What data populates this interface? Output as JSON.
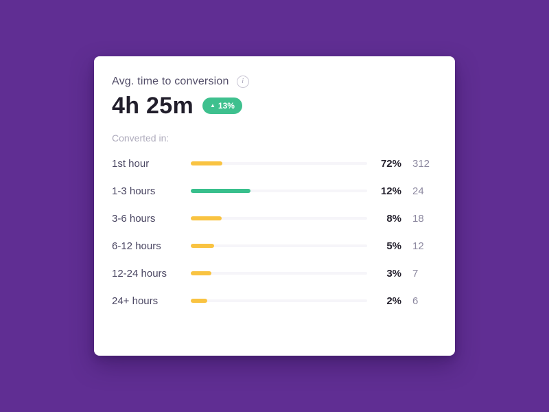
{
  "app": {
    "background_color": "#602e93"
  },
  "card": {
    "title": "Avg. time to conversion",
    "info_icon_glyph": "i",
    "metric": {
      "value": "4h 25m",
      "badge": {
        "direction": "up",
        "arrow": "▲",
        "label": "13%",
        "color": "#3ec08e"
      }
    },
    "section_label": "Converted in:",
    "rows": [
      {
        "label": "1st hour",
        "percent": "72%",
        "count": "312",
        "bar_pct": 18,
        "bar_color": "#f9c341"
      },
      {
        "label": "1-3 hours",
        "percent": "12%",
        "count": "24",
        "bar_pct": 34,
        "bar_color": "#38bf8c"
      },
      {
        "label": "3-6 hours",
        "percent": "8%",
        "count": "18",
        "bar_pct": 17.5,
        "bar_color": "#f9c341"
      },
      {
        "label": "6-12 hours",
        "percent": "5%",
        "count": "12",
        "bar_pct": 13.2,
        "bar_color": "#f9c341"
      },
      {
        "label": "12-24 hours",
        "percent": "3%",
        "count": "7",
        "bar_pct": 11.7,
        "bar_color": "#f9c341"
      },
      {
        "label": "24+ hours",
        "percent": "2%",
        "count": "6",
        "bar_pct": 9.4,
        "bar_color": "#f9c341"
      }
    ],
    "colors": {
      "track": "#f6f5f9",
      "yellow_bar": "#f9c341",
      "green_bar": "#38bf8c",
      "percent_text": "#26232f",
      "count_text": "#8d89a0"
    }
  },
  "chart_data": {
    "type": "bar",
    "orientation": "horizontal",
    "title": "Avg. time to conversion",
    "metric_value": "4h 25m",
    "metric_change": "+13%",
    "categories": [
      "1st hour",
      "1-3 hours",
      "3-6 hours",
      "6-12 hours",
      "12-24 hours",
      "24+ hours"
    ],
    "series": [
      {
        "name": "percent",
        "unit": "%",
        "values": [
          72,
          12,
          8,
          5,
          3,
          2
        ]
      },
      {
        "name": "count",
        "values": [
          312,
          24,
          18,
          12,
          7,
          6
        ]
      }
    ],
    "bar_track_fractions": [
      0.18,
      0.34,
      0.175,
      0.132,
      0.117,
      0.094
    ],
    "bar_colors": [
      "#f9c341",
      "#38bf8c",
      "#f9c341",
      "#f9c341",
      "#f9c341",
      "#f9c341"
    ],
    "legend": false,
    "grid": false,
    "axis_labels": false
  }
}
